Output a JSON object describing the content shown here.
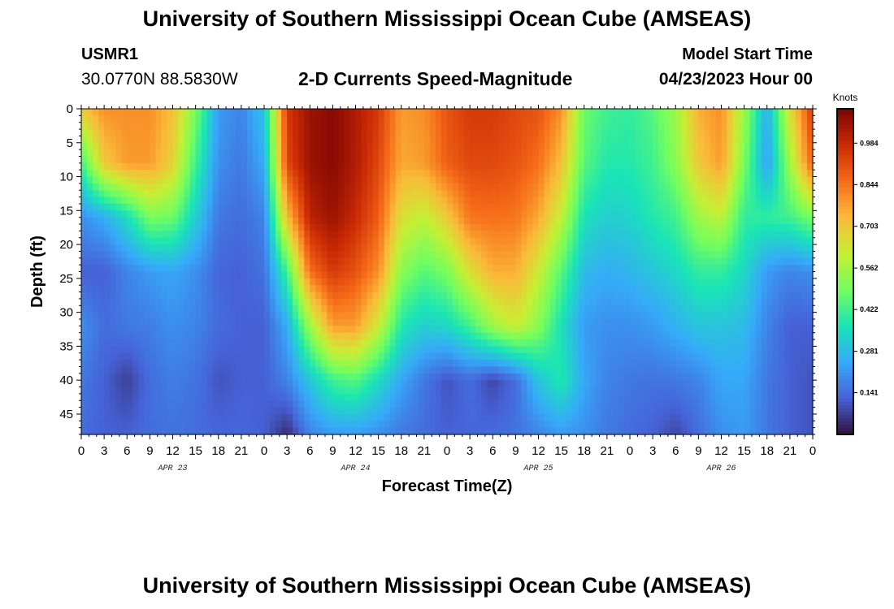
{
  "header": {
    "title": "University of Southern Mississippi Ocean Cube (AMSEAS)",
    "station": "USMR1",
    "coords": "30.0770N  88.5830W",
    "subtitle": "2-D Currents Speed-Magnitude",
    "start_label": "Model Start Time",
    "start_value": "04/23/2023 Hour 00"
  },
  "footer": {
    "title": "University of Southern Mississippi Ocean Cube (AMSEAS)"
  },
  "chart_data": {
    "type": "heatmap",
    "title": "2-D Currents Speed-Magnitude",
    "xlabel": "Forecast Time(Z)",
    "ylabel": "Depth (ft)",
    "x_tick_labels": [
      "0",
      "3",
      "6",
      "9",
      "12",
      "15",
      "18",
      "21",
      "0",
      "3",
      "6",
      "9",
      "12",
      "15",
      "18",
      "21",
      "0",
      "3",
      "6",
      "9",
      "12",
      "15",
      "18",
      "21",
      "0",
      "3",
      "6",
      "9",
      "12",
      "15",
      "18",
      "21",
      "0"
    ],
    "x_range_hours": [
      0,
      96
    ],
    "day_labels": [
      {
        "label": "APR 23",
        "hour": 12
      },
      {
        "label": "APR 24",
        "hour": 36
      },
      {
        "label": "APR 25",
        "hour": 60
      },
      {
        "label": "APR 26",
        "hour": 84
      }
    ],
    "y_ticks": [
      0,
      5,
      10,
      15,
      20,
      25,
      30,
      35,
      40,
      45
    ],
    "y_range_ft": [
      0,
      48
    ],
    "colorbar": {
      "unit": "Knots",
      "range": [
        0.0,
        1.1
      ],
      "tick_values": [
        0.984,
        0.844,
        0.703,
        0.562,
        0.422,
        0.281,
        0.141
      ],
      "tick_labels": [
        "0.984",
        "0.844",
        "0.703",
        "0.562",
        "0.422",
        "0.281",
        "0.141"
      ],
      "colormap": [
        "#30123b",
        "#4662d7",
        "#36aaf9",
        "#1ae4b6",
        "#72fe5e",
        "#c7ef34",
        "#faba39",
        "#f66b19",
        "#ca2a04",
        "#7a0403"
      ]
    },
    "depth_levels_ft": [
      0,
      8,
      16,
      24,
      32,
      40,
      48
    ],
    "time_hours": [
      0,
      3,
      6,
      9,
      12,
      15,
      18,
      21,
      24,
      27,
      30,
      33,
      36,
      39,
      42,
      45,
      48,
      51,
      54,
      57,
      60,
      63,
      66,
      69,
      72,
      75,
      78,
      81,
      84,
      87,
      90,
      93,
      96
    ],
    "speed_knots": [
      [
        0.7,
        0.8,
        0.8,
        0.8,
        0.72,
        0.5,
        0.22,
        0.18,
        0.3,
        0.95,
        1.05,
        1.08,
        1.02,
        0.95,
        0.78,
        0.8,
        0.9,
        0.95,
        0.95,
        0.92,
        0.9,
        0.8,
        0.48,
        0.42,
        0.4,
        0.45,
        0.55,
        0.75,
        0.8,
        0.55,
        0.25,
        0.65,
        0.95
      ],
      [
        0.42,
        0.7,
        0.78,
        0.78,
        0.68,
        0.42,
        0.2,
        0.16,
        0.25,
        0.92,
        1.05,
        1.08,
        1.02,
        0.92,
        0.76,
        0.78,
        0.88,
        0.92,
        0.92,
        0.9,
        0.85,
        0.72,
        0.45,
        0.38,
        0.38,
        0.42,
        0.52,
        0.7,
        0.78,
        0.5,
        0.22,
        0.55,
        0.88
      ],
      [
        0.2,
        0.25,
        0.35,
        0.5,
        0.48,
        0.32,
        0.16,
        0.14,
        0.18,
        0.72,
        1.0,
        1.05,
        0.98,
        0.88,
        0.65,
        0.6,
        0.7,
        0.84,
        0.85,
        0.84,
        0.76,
        0.6,
        0.36,
        0.32,
        0.33,
        0.38,
        0.42,
        0.55,
        0.6,
        0.4,
        0.4,
        0.42,
        0.5
      ],
      [
        0.12,
        0.12,
        0.18,
        0.22,
        0.24,
        0.2,
        0.13,
        0.12,
        0.15,
        0.42,
        0.85,
        0.95,
        0.9,
        0.8,
        0.52,
        0.45,
        0.5,
        0.65,
        0.75,
        0.75,
        0.62,
        0.45,
        0.28,
        0.25,
        0.27,
        0.3,
        0.34,
        0.4,
        0.4,
        0.34,
        0.22,
        0.18,
        0.2
      ],
      [
        0.2,
        0.14,
        0.16,
        0.17,
        0.2,
        0.18,
        0.14,
        0.12,
        0.12,
        0.25,
        0.55,
        0.78,
        0.78,
        0.62,
        0.38,
        0.32,
        0.34,
        0.42,
        0.55,
        0.62,
        0.52,
        0.36,
        0.22,
        0.2,
        0.2,
        0.22,
        0.26,
        0.3,
        0.3,
        0.28,
        0.18,
        0.12,
        0.12
      ],
      [
        0.16,
        0.12,
        0.07,
        0.14,
        0.17,
        0.15,
        0.1,
        0.12,
        0.12,
        0.18,
        0.3,
        0.42,
        0.45,
        0.35,
        0.24,
        0.16,
        0.1,
        0.14,
        0.08,
        0.14,
        0.3,
        0.38,
        0.24,
        0.18,
        0.16,
        0.15,
        0.16,
        0.18,
        0.24,
        0.24,
        0.16,
        0.12,
        0.1
      ],
      [
        0.14,
        0.12,
        0.12,
        0.14,
        0.15,
        0.14,
        0.13,
        0.13,
        0.12,
        0.04,
        0.18,
        0.22,
        0.22,
        0.2,
        0.16,
        0.14,
        0.12,
        0.13,
        0.14,
        0.15,
        0.18,
        0.22,
        0.2,
        0.16,
        0.14,
        0.12,
        0.08,
        0.14,
        0.2,
        0.22,
        0.16,
        0.12,
        0.1
      ]
    ]
  }
}
